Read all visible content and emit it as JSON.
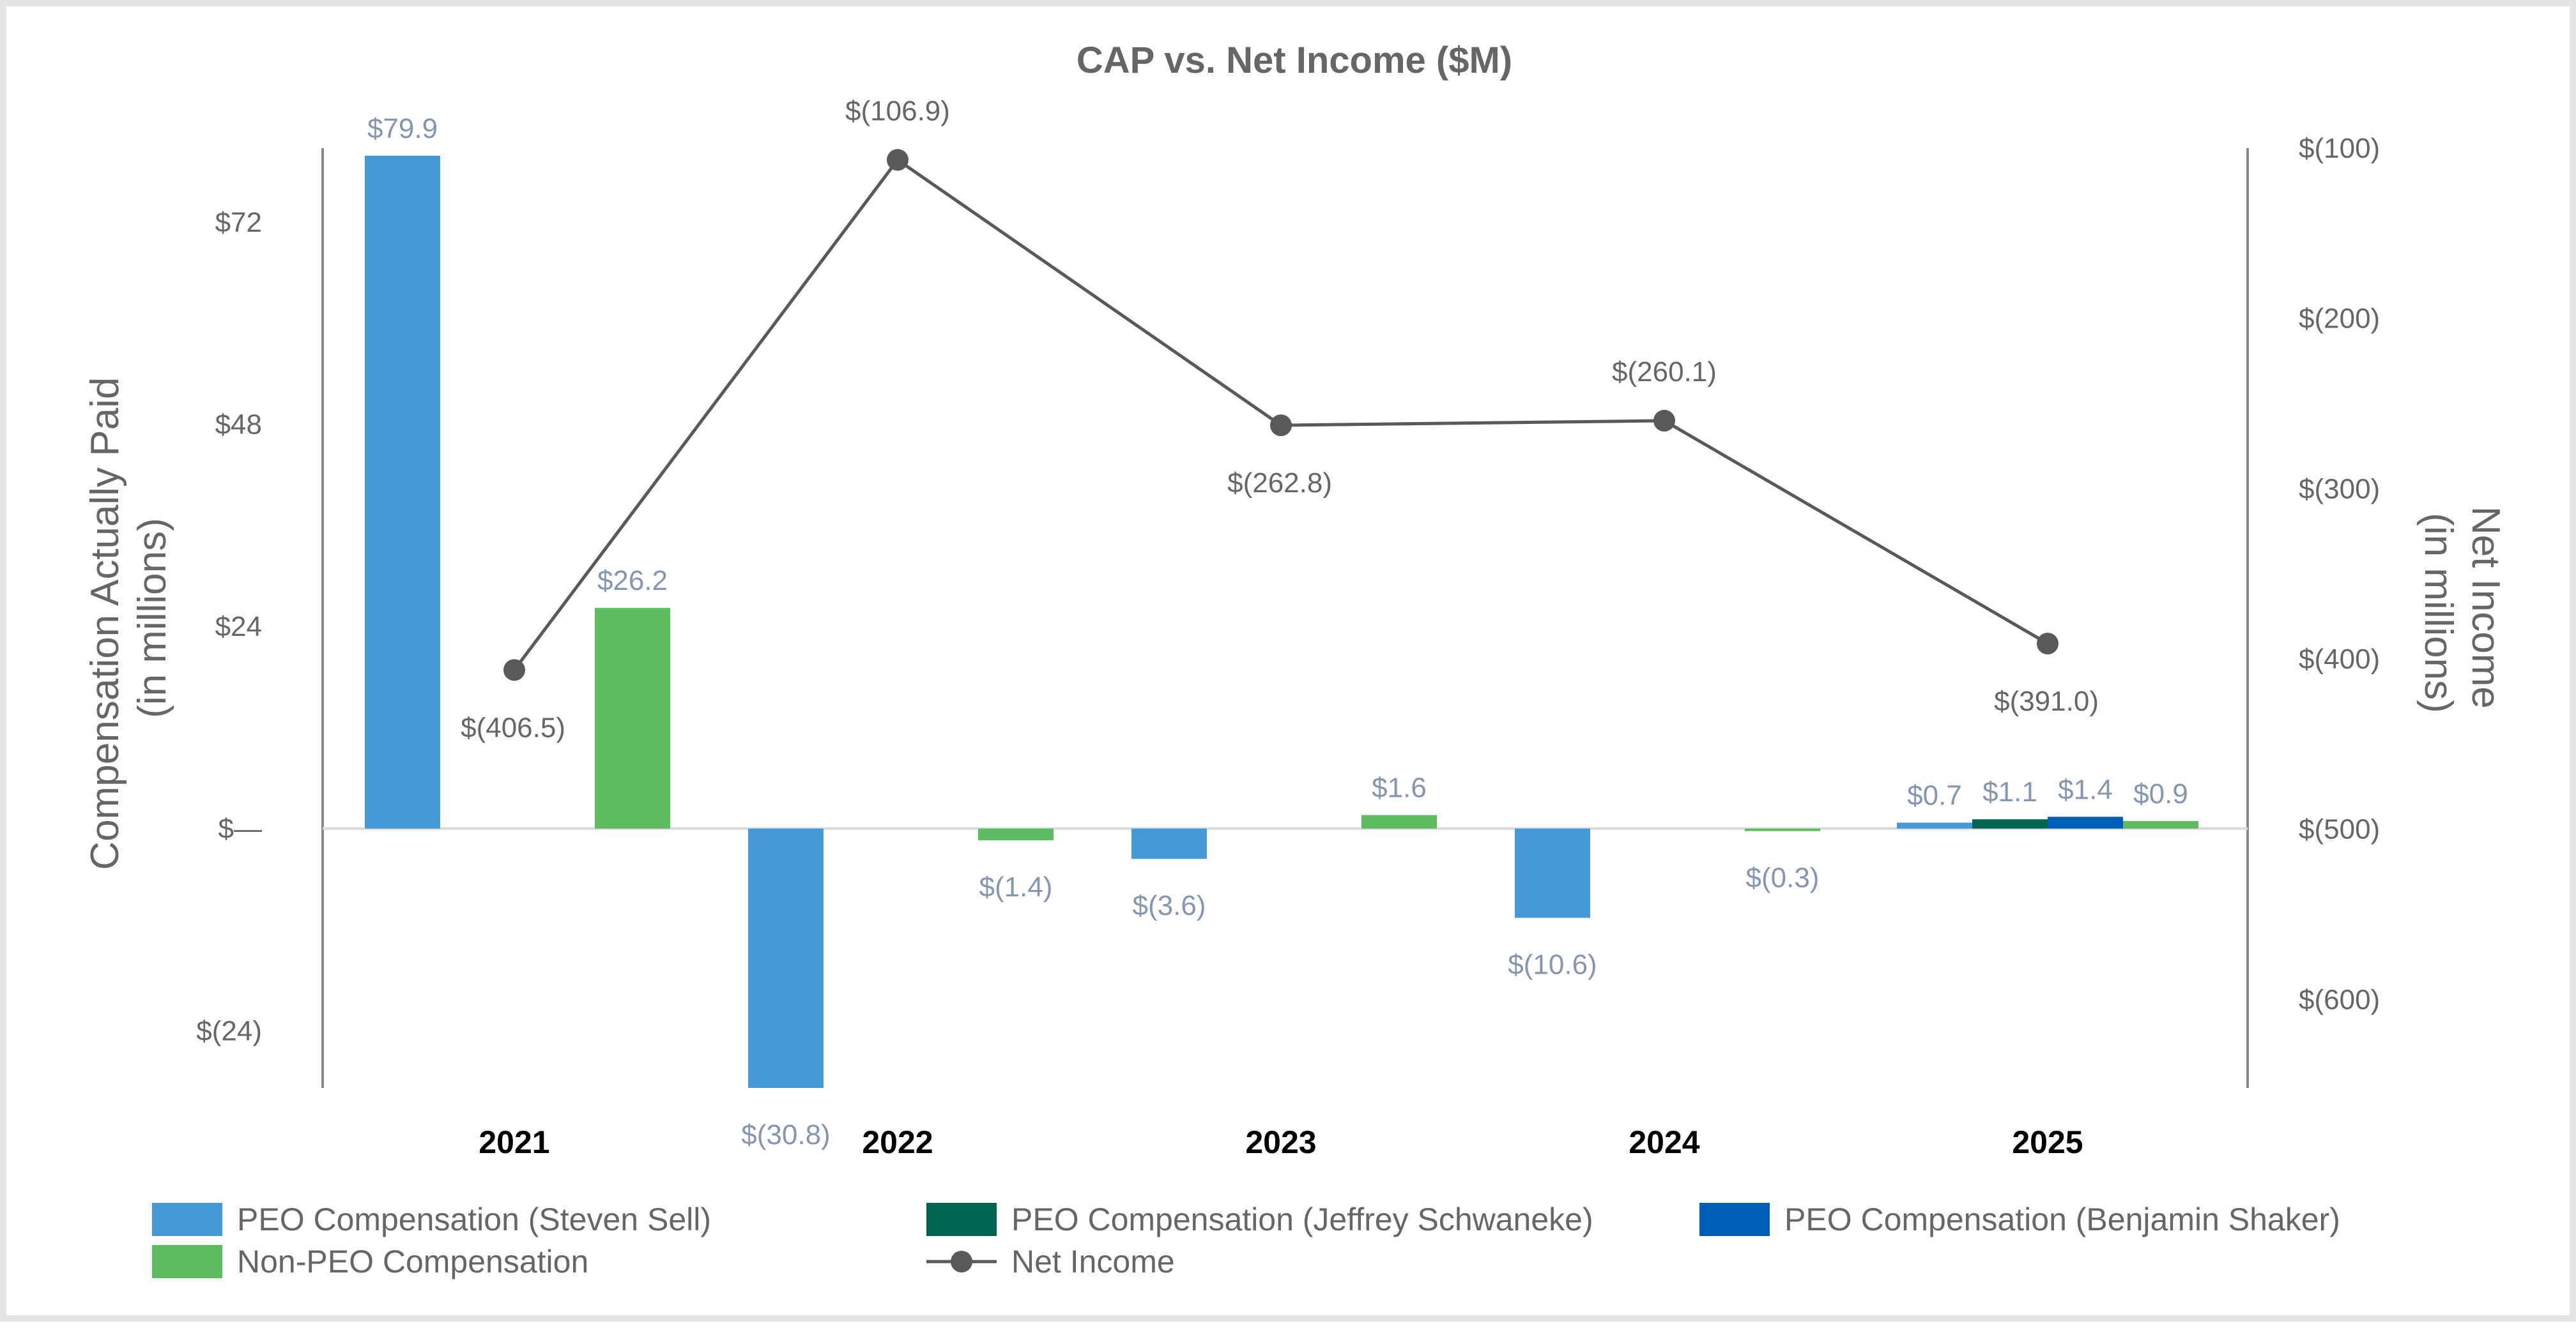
{
  "chart_data": {
    "type": "bar",
    "title": "CAP vs. Net Income ($M)",
    "categories": [
      "2021",
      "2022",
      "2023",
      "2024",
      "2025"
    ],
    "y_left": {
      "label_line1": "Compensation Actually Paid",
      "label_line2": "(in millions)",
      "range": [
        -30.8,
        80.8
      ],
      "ticks": [
        72,
        48,
        24,
        0,
        -24
      ],
      "tick_labels": [
        "$72",
        "$48",
        "$24",
        "$—",
        "$(24)"
      ]
    },
    "y_right": {
      "label_line1": "Net Income",
      "label_line2": "(in millions)",
      "range": [
        -652,
        -100
      ],
      "ticks": [
        -100,
        -200,
        -300,
        -400,
        -500,
        -600
      ],
      "tick_labels": [
        "$(100)",
        "$(200)",
        "$(300)",
        "$(400)",
        "$(500)",
        "$(600)"
      ]
    },
    "bar_series": [
      {
        "name": "PEO Compensation (Steven Sell)",
        "color": "#4599d6",
        "values": [
          79.9,
          -30.8,
          -3.6,
          -10.6,
          0.7
        ],
        "labels": [
          "$79.9",
          "$(30.8)",
          "$(3.6)",
          "$(10.6)",
          "$0.7"
        ]
      },
      {
        "name": "PEO Compensation (Jeffrey Schwaneke)",
        "color": "#006550",
        "values": [
          null,
          null,
          null,
          null,
          1.1
        ],
        "labels": [
          null,
          null,
          null,
          null,
          "$1.1"
        ]
      },
      {
        "name": "PEO Compensation (Benjamin Shaker)",
        "color": "#005eb8",
        "values": [
          null,
          null,
          null,
          null,
          1.4
        ],
        "labels": [
          null,
          null,
          null,
          null,
          "$1.4"
        ]
      },
      {
        "name": "Non-PEO Compensation",
        "color": "#5dbc60",
        "values": [
          26.2,
          -1.4,
          1.6,
          -0.3,
          0.9
        ],
        "labels": [
          "$26.2",
          "$(1.4)",
          "$1.6",
          "$(0.3)",
          "$0.9"
        ]
      }
    ],
    "line_series": {
      "name": "Net Income",
      "color": "#595959",
      "values": [
        -406.5,
        -106.9,
        -262.8,
        -260.1,
        -391.0
      ],
      "labels": [
        "$(406.5)",
        "$(106.9)",
        "$(262.8)",
        "$(260.1)",
        "$(391.0)"
      ]
    },
    "legend": {
      "placement": "bottom",
      "items": [
        {
          "label": "PEO Compensation (Steven Sell)",
          "color": "#4599d6",
          "kind": "bar"
        },
        {
          "label": "PEO Compensation (Jeffrey Schwaneke)",
          "color": "#006550",
          "kind": "bar"
        },
        {
          "label": "PEO Compensation (Benjamin Shaker)",
          "color": "#005eb8",
          "kind": "bar"
        },
        {
          "label": "Non-PEO Compensation",
          "color": "#5dbc60",
          "kind": "bar"
        },
        {
          "label": "Net Income",
          "color": "#595959",
          "kind": "line"
        }
      ]
    },
    "grid": false
  }
}
